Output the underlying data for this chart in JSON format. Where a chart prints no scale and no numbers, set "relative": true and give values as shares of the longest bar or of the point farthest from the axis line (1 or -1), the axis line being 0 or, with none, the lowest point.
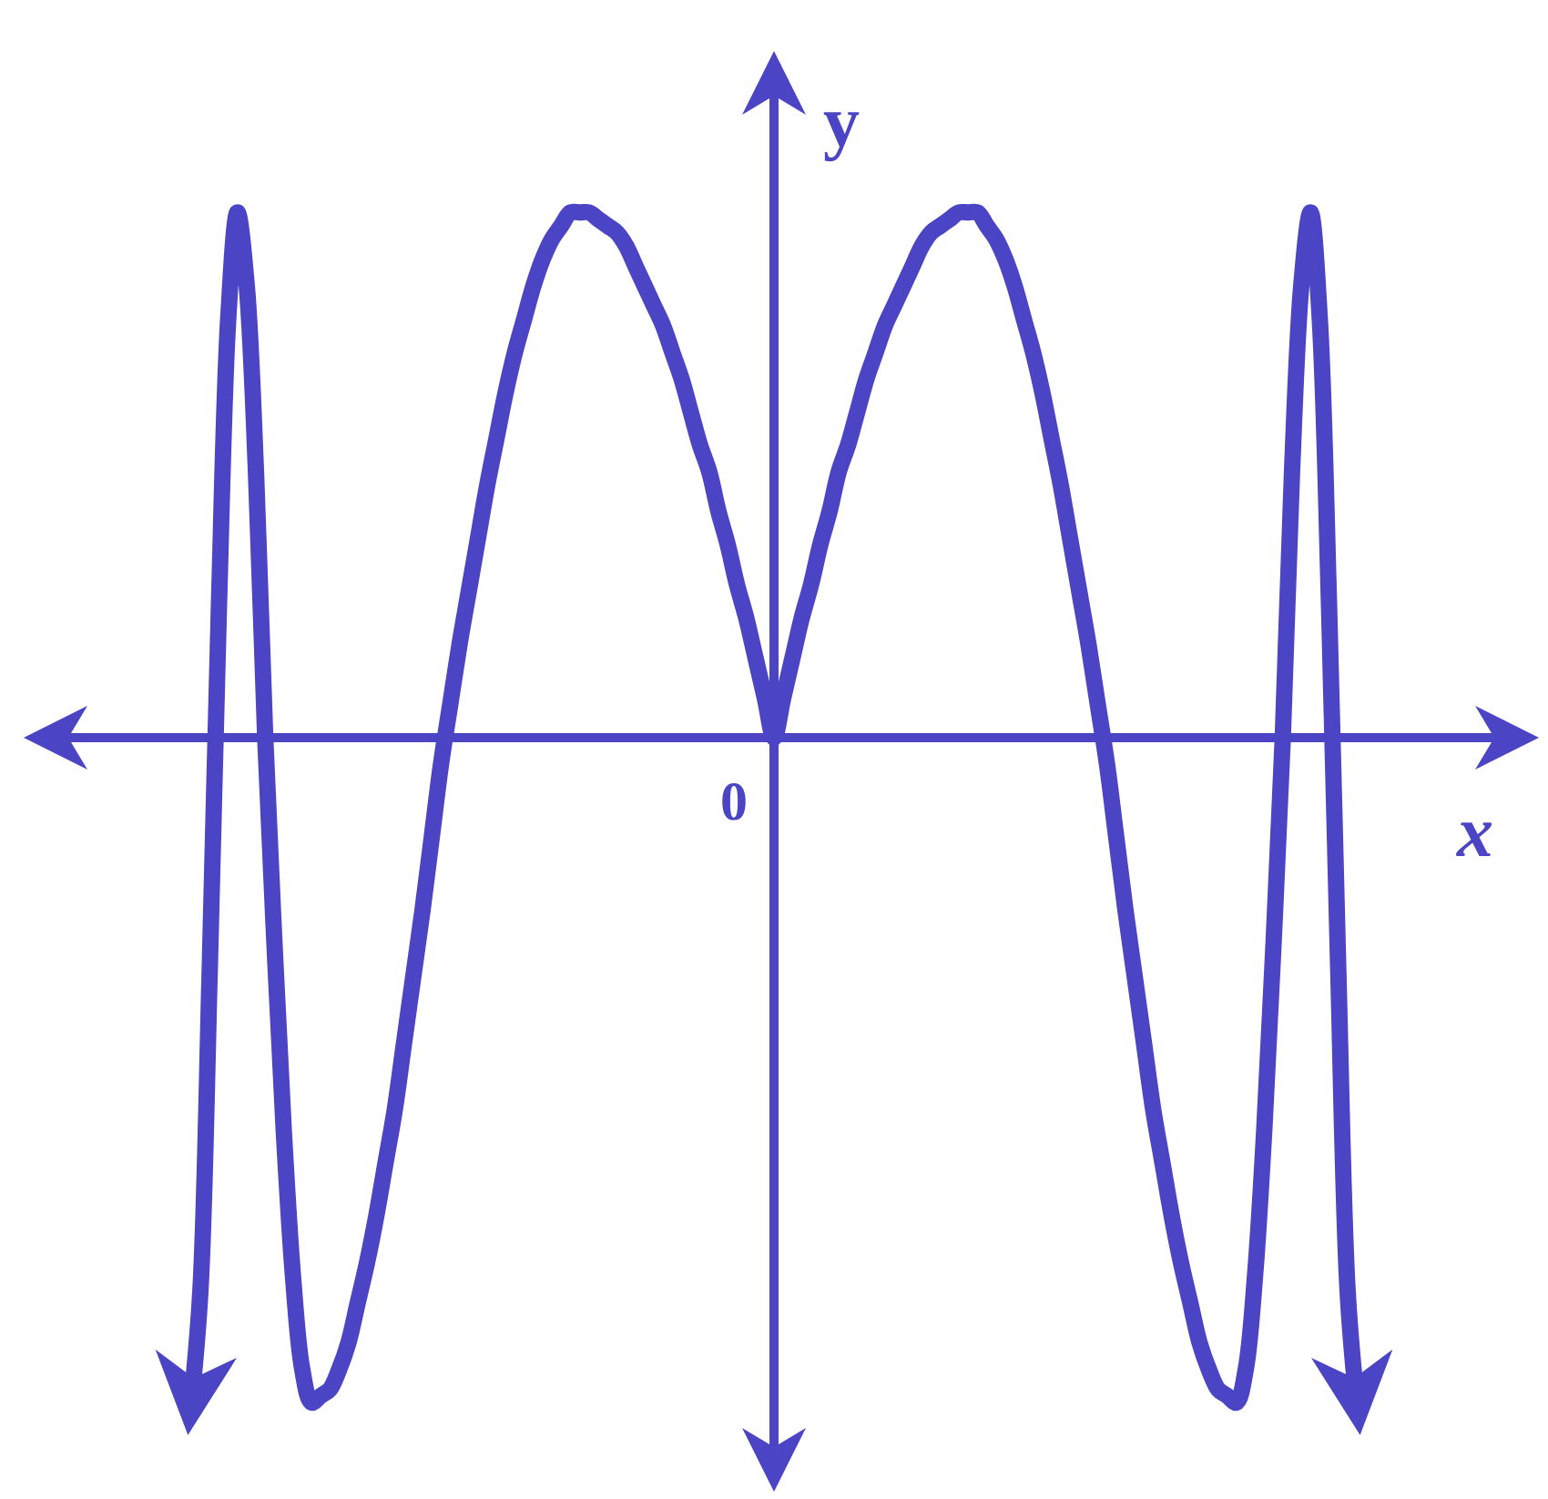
{
  "chart_data": {
    "type": "line",
    "xlabel": "x",
    "ylabel": "y",
    "relative": true,
    "ref_lines": [
      {
        "axis": "y",
        "value": 0
      }
    ],
    "annotations": [
      "0"
    ],
    "categories": [
      null,
      null,
      null,
      null,
      null,
      null,
      null,
      null,
      null,
      null,
      null,
      null,
      null,
      null,
      null,
      null,
      null,
      null,
      null,
      null,
      null,
      null,
      null,
      null,
      null,
      null,
      null,
      null,
      null,
      null,
      null,
      null,
      null,
      null,
      null,
      null,
      null,
      null,
      null,
      null,
      null,
      null,
      null,
      null,
      null,
      null,
      null,
      null,
      null,
      null,
      null,
      null,
      null,
      null,
      null,
      null,
      null,
      null,
      null,
      null,
      null,
      null,
      null,
      null,
      null,
      null,
      null,
      null,
      null,
      null,
      null,
      null,
      null,
      null,
      null,
      null,
      null,
      null,
      null,
      null,
      null,
      null,
      null,
      null,
      null,
      null,
      null,
      null,
      null,
      null,
      null,
      null,
      null,
      null,
      null,
      null,
      null,
      null,
      null,
      null,
      null,
      null,
      null,
      null,
      null,
      null,
      null,
      null,
      null,
      null,
      null,
      null,
      null,
      null,
      null,
      null,
      null,
      null,
      null,
      null,
      null,
      null,
      null,
      null,
      null,
      null,
      null
    ],
    "series": [
      {
        "color": "#4b44c4",
        "values": [
          -1,
          -0.83,
          -0.35,
          0.2,
          0.63,
          0.79,
          0.68,
          0.4,
          0,
          -0.31,
          -0.59,
          -0.81,
          -0.95,
          -1,
          -0.99,
          -0.98,
          -0.95,
          -0.91,
          -0.85,
          -0.79,
          -0.72,
          -0.64,
          -0.56,
          -0.46,
          -0.36,
          -0.26,
          -0.15,
          -0.04,
          0.05,
          0.14,
          0.22,
          0.3,
          0.38,
          0.45,
          0.52,
          0.58,
          0.63,
          0.68,
          0.72,
          0.75,
          0.77,
          0.79,
          0.79,
          0.79,
          0.78,
          0.77,
          0.76,
          0.74,
          0.71,
          0.68,
          0.65,
          0.62,
          0.58,
          0.54,
          0.49,
          0.44,
          0.4,
          0.34,
          0.29,
          0.23,
          0.18,
          0.12,
          0.06,
          0,
          0.06,
          0.12,
          0.18,
          0.23,
          0.29,
          0.34,
          0.4,
          0.44,
          0.49,
          0.54,
          0.58,
          0.62,
          0.65,
          0.68,
          0.71,
          0.74,
          0.76,
          0.77,
          0.78,
          0.79,
          0.79,
          0.79,
          0.77,
          0.75,
          0.72,
          0.68,
          0.63,
          0.58,
          0.52,
          0.45,
          0.38,
          0.3,
          0.22,
          0.14,
          0.05,
          -0.04,
          -0.15,
          -0.26,
          -0.36,
          -0.46,
          -0.56,
          -0.64,
          -0.72,
          -0.79,
          -0.85,
          -0.91,
          -0.95,
          -0.98,
          -0.99,
          -1,
          -0.95,
          -0.81,
          -0.59,
          -0.31,
          0,
          0.4,
          0.68,
          0.79,
          0.63,
          0.2,
          -0.35,
          -0.83,
          -1
        ]
      }
    ]
  }
}
